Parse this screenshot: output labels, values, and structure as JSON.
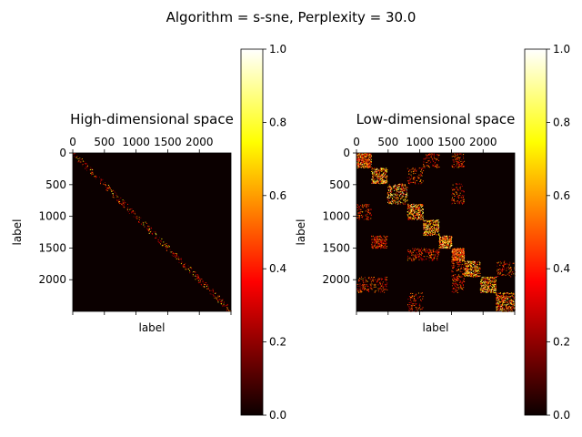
{
  "figure": {
    "suptitle": "Algorithm = s-sne, Perplexity = 30.0"
  },
  "chart_data": [
    {
      "type": "heatmap",
      "title": "High-dimensional space",
      "xlabel": "label",
      "ylabel": "label",
      "x_ticks": [
        "0",
        "500",
        "1000",
        "1500",
        "2000"
      ],
      "y_ticks": [
        "0",
        "500",
        "1000",
        "1500",
        "2000"
      ],
      "matrix_size": 2500,
      "colormap": "hot",
      "clim": [
        0,
        1
      ],
      "structure": "sparse, values concentrated near the diagonal; mostly near 0",
      "colorbar_ticks": [
        "0.0",
        "0.2",
        "0.4",
        "0.6",
        "0.8",
        "1.0"
      ],
      "grid": false
    },
    {
      "type": "heatmap",
      "title": "Low-dimensional space",
      "xlabel": "label",
      "ylabel": "label",
      "x_ticks": [
        "0",
        "500",
        "1000",
        "1500",
        "2000"
      ],
      "y_ticks": [
        "0",
        "500",
        "1000",
        "1500",
        "2000"
      ],
      "matrix_size": 2500,
      "colormap": "hot",
      "clim": [
        0,
        1
      ],
      "structure": "block-structured clusters along the diagonal with scattered off-diagonal blocks",
      "colorbar_ticks": [
        "0.0",
        "0.2",
        "0.4",
        "0.6",
        "0.8",
        "1.0"
      ],
      "grid": false
    }
  ]
}
